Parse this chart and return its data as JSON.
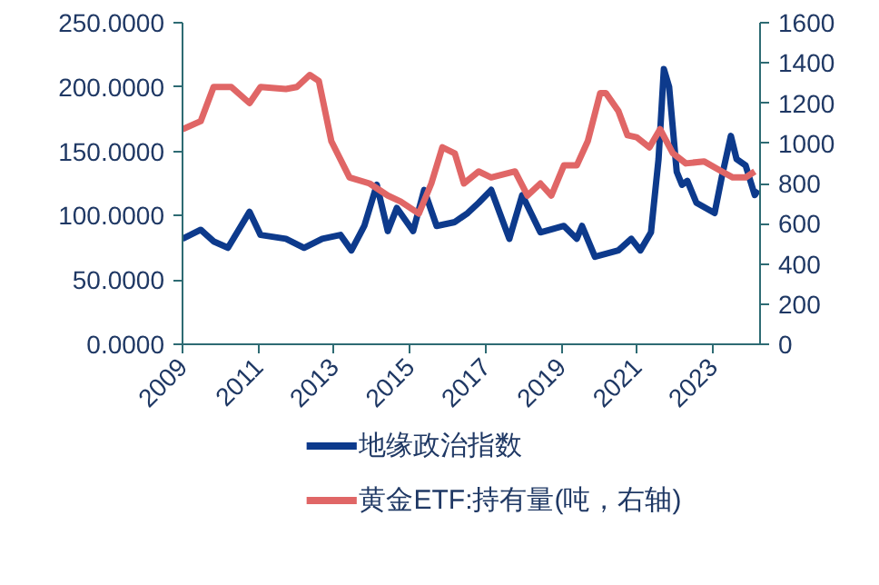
{
  "chart_data": {
    "type": "line",
    "xlim": [
      2009,
      2024.25
    ],
    "xticks": [
      2009,
      2011,
      2013,
      2015,
      2017,
      2019,
      2021,
      2023
    ],
    "ylim": [
      0,
      250
    ],
    "yticks": [
      {
        "value": 0,
        "label": "0.0000"
      },
      {
        "value": 50,
        "label": "50.0000"
      },
      {
        "value": 100,
        "label": "100.0000"
      },
      {
        "value": 150,
        "label": "150.0000"
      },
      {
        "value": 200,
        "label": "200.0000"
      },
      {
        "value": 250,
        "label": "250.0000"
      }
    ],
    "y2lim": [
      0,
      1600
    ],
    "y2ticks": [
      0,
      200,
      400,
      600,
      800,
      1000,
      1200,
      1400,
      1600
    ],
    "grid": false,
    "legend": "bottom",
    "series": [
      {
        "name": "地缘政治指数",
        "color": "#0d3a8c",
        "x": [
          2009,
          2009.48,
          2009.82,
          2010.2,
          2010.77,
          2011.06,
          2011.73,
          2012.21,
          2012.69,
          2013.17,
          2013.46,
          2013.8,
          2014.13,
          2014.42,
          2014.66,
          2015.09,
          2015.38,
          2015.71,
          2016.19,
          2016.53,
          2016.82,
          2017.15,
          2017.63,
          2017.97,
          2018.45,
          2019.07,
          2019.41,
          2019.55,
          2019.89,
          2020.51,
          2020.85,
          2021.09,
          2021.37,
          2021.57,
          2021.71,
          2021.85,
          2022.05,
          2022.19,
          2022.33,
          2022.57,
          2023.05,
          2023.24,
          2023.48,
          2023.63,
          2023.87,
          2024.11,
          2024.2
        ],
        "values": [
          82,
          89,
          80,
          75,
          103,
          85,
          82,
          75,
          82,
          85,
          73,
          92,
          124,
          88,
          106,
          88,
          120,
          92,
          95,
          102,
          110,
          120,
          82,
          116,
          87,
          92,
          82,
          92,
          68,
          73,
          82,
          73,
          87,
          144,
          214,
          200,
          134,
          124,
          127,
          110,
          102,
          130,
          162,
          144,
          139,
          116,
          120
        ]
      },
      {
        "name": "黄金ETF:持有量(吨，右轴)",
        "color": "#e06666",
        "axis": "y2",
        "x": [
          2009,
          2009.48,
          2009.82,
          2010.29,
          2010.77,
          2011.06,
          2011.73,
          2012.02,
          2012.36,
          2012.6,
          2012.93,
          2013.41,
          2013.94,
          2014.42,
          2014.76,
          2015.24,
          2015.57,
          2015.86,
          2016.19,
          2016.43,
          2016.82,
          2017.15,
          2017.78,
          2018.11,
          2018.45,
          2018.74,
          2019.07,
          2019.41,
          2019.7,
          2020.03,
          2020.18,
          2020.51,
          2020.75,
          2020.99,
          2021.33,
          2021.61,
          2021.95,
          2022.29,
          2022.77,
          2023.24,
          2023.53,
          2023.87,
          2024.11
        ],
        "values": [
          1070,
          1110,
          1280,
          1280,
          1200,
          1280,
          1270,
          1280,
          1340,
          1310,
          1010,
          830,
          800,
          740,
          710,
          650,
          800,
          980,
          950,
          800,
          860,
          830,
          860,
          740,
          800,
          740,
          890,
          890,
          1010,
          1250,
          1250,
          1160,
          1040,
          1030,
          980,
          1070,
          950,
          900,
          910,
          860,
          830,
          830,
          860
        ]
      }
    ]
  }
}
